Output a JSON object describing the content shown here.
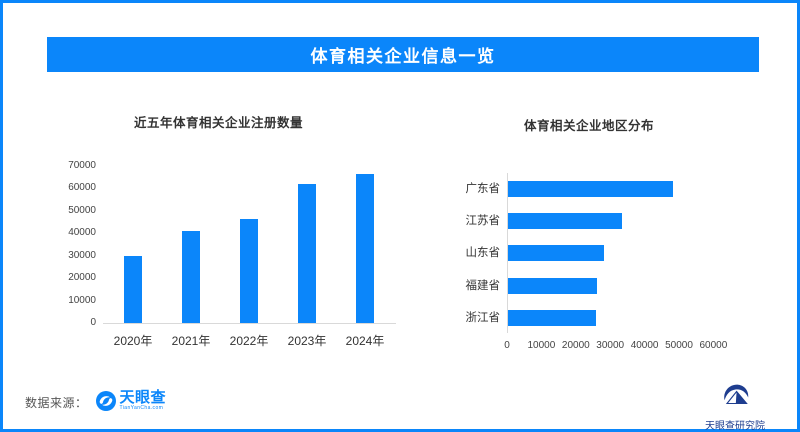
{
  "banner": {
    "title": "体育相关企业信息一览"
  },
  "chart_data": [
    {
      "type": "bar",
      "title": "近五年体育相关企业注册数量",
      "categories": [
        "2020年",
        "2021年",
        "2022年",
        "2023年",
        "2024年"
      ],
      "values": [
        30000,
        41000,
        46500,
        62000,
        66500
      ],
      "xlabel": "",
      "ylabel": "",
      "y_ticks": [
        0,
        10000,
        20000,
        30000,
        40000,
        50000,
        60000,
        70000
      ],
      "ylim": [
        0,
        70000
      ],
      "grid": "off",
      "legend": "none",
      "bar_color": "#0b86fa"
    },
    {
      "type": "bar",
      "orientation": "horizontal",
      "title": "体育相关企业地区分布",
      "categories": [
        "广东省",
        "江苏省",
        "山东省",
        "福建省",
        "浙江省"
      ],
      "values": [
        48000,
        33000,
        28000,
        26000,
        25500
      ],
      "xlabel": "",
      "ylabel": "",
      "x_ticks": [
        0,
        10000,
        20000,
        30000,
        40000,
        50000,
        60000
      ],
      "xlim": [
        0,
        60000
      ],
      "grid": "off",
      "legend": "none",
      "bar_color": "#0b86fa"
    }
  ],
  "footer": {
    "source_label": "数据来源：",
    "brand_name": "天眼查",
    "brand_url_text": "TianYanCha.com",
    "institute_name": "天眼查研究院"
  },
  "colors": {
    "accent": "#0b86fa",
    "bar": "#0b86fa",
    "navy": "#1e3d8f",
    "axis_line": "#d9d9d9",
    "title_text": "#333333",
    "tick_text": "#444444",
    "source_text": "#555555"
  }
}
